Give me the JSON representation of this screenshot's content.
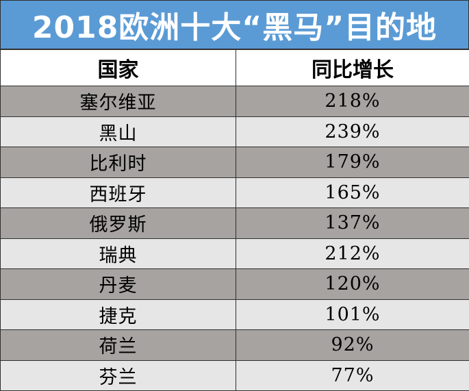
{
  "title": "2018欧洲十大“黑马”目的地",
  "columns": [
    "国家",
    "同比增长"
  ],
  "rows": [
    {
      "country": "塞尔维亚",
      "growth": "218%"
    },
    {
      "country": "黑山",
      "growth": "239%"
    },
    {
      "country": "比利时",
      "growth": "179%"
    },
    {
      "country": "西班牙",
      "growth": "165%"
    },
    {
      "country": "俄罗斯",
      "growth": "137%"
    },
    {
      "country": "瑞典",
      "growth": "212%"
    },
    {
      "country": "丹麦",
      "growth": "120%"
    },
    {
      "country": "捷克",
      "growth": "101%"
    },
    {
      "country": "荷兰",
      "growth": "92%"
    },
    {
      "country": "芬兰",
      "growth": "77%"
    }
  ],
  "colors": {
    "title_bg": "#5b9bd5",
    "title_text": "#ffffff",
    "row_odd": "#a6a3a0",
    "row_even": "#e6e6e6",
    "border": "#2f2f2f"
  }
}
